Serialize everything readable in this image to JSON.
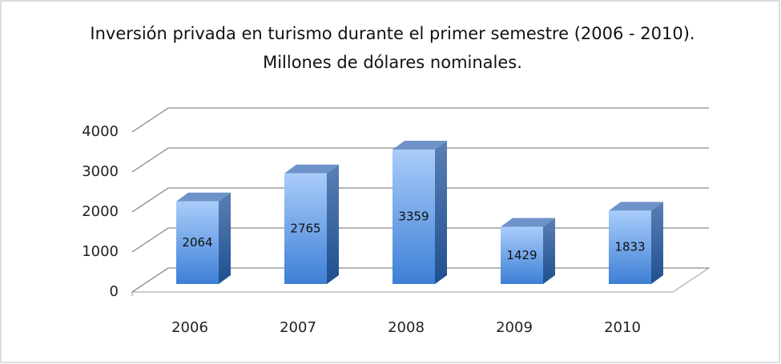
{
  "chart_data": {
    "type": "bar3d",
    "title": "Inversión privada en turismo durante el primer semestre (2006 - 2010). Millones de dólares nominales.",
    "categories": [
      "2006",
      "2007",
      "2008",
      "2009",
      "2010"
    ],
    "values": [
      2064,
      2765,
      3359,
      1429,
      1833
    ],
    "color": "#5b9bd5",
    "ylim": [
      0,
      4000
    ],
    "yticks": [
      0,
      1000,
      2000,
      3000,
      4000
    ],
    "grid": true
  }
}
